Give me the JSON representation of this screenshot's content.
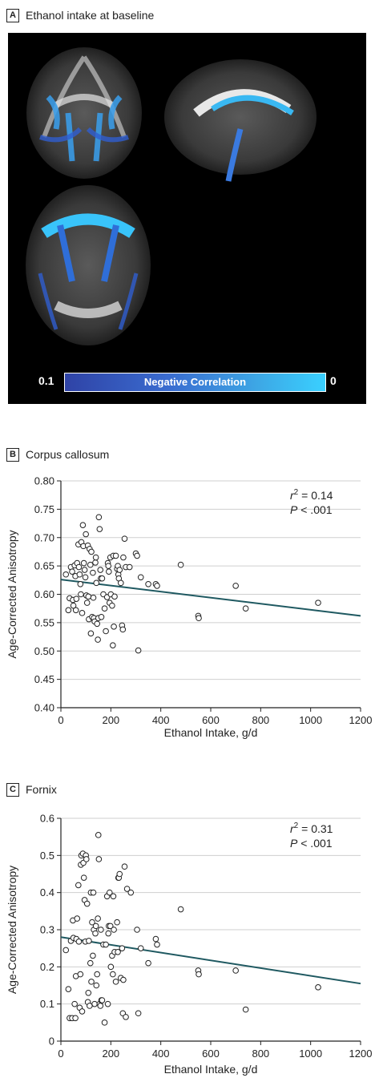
{
  "panelA": {
    "letter": "A",
    "title": "Ethanol intake at baseline",
    "colorbar": {
      "label": "Negative Correlation",
      "min_label": "0.1",
      "max_label": "0",
      "colors": [
        "#2f43a6",
        "#39d0ff"
      ]
    }
  },
  "panelB": {
    "letter": "B",
    "title": "Corpus callosum"
  },
  "panelC": {
    "letter": "C",
    "title": "Fornix"
  },
  "chart_data": [
    {
      "type": "scatter",
      "title": "Corpus callosum",
      "xlabel": "Ethanol Intake, g/d",
      "ylabel": "Age-Corrected Anisotropy",
      "xlim": [
        0,
        1200
      ],
      "ylim": [
        0.4,
        0.8
      ],
      "xticks": [
        0,
        200,
        400,
        600,
        800,
        1000,
        1200
      ],
      "xtick_labels": [
        "0",
        "200",
        "400",
        "600",
        "800",
        "1000",
        "1200"
      ],
      "yticks": [
        0.4,
        0.45,
        0.5,
        0.55,
        0.6,
        0.65,
        0.7,
        0.75,
        0.8
      ],
      "ytick_labels": [
        "0.40",
        "0.45",
        "0.50",
        "0.55",
        "0.60",
        "0.65",
        "0.70",
        "0.75",
        "0.80"
      ],
      "grid": "horizontal",
      "annotation": {
        "r2_prefix": "r",
        "r2_sup": "2",
        "r2_value": " = 0.14",
        "p_prefix": "P",
        "p_value": " < .001"
      },
      "fit_line": {
        "x": [
          0,
          1200
        ],
        "y": [
          0.626,
          0.562
        ],
        "color": "#1f5961"
      },
      "points": [
        [
          20,
          0.635
        ],
        [
          30,
          0.572
        ],
        [
          35,
          0.593
        ],
        [
          40,
          0.648
        ],
        [
          45,
          0.64
        ],
        [
          48,
          0.59
        ],
        [
          50,
          0.58
        ],
        [
          55,
          0.651
        ],
        [
          58,
          0.632
        ],
        [
          60,
          0.572
        ],
        [
          62,
          0.592
        ],
        [
          65,
          0.655
        ],
        [
          70,
          0.688
        ],
        [
          72,
          0.648
        ],
        [
          75,
          0.635
        ],
        [
          78,
          0.618
        ],
        [
          80,
          0.6
        ],
        [
          82,
          0.692
        ],
        [
          85,
          0.567
        ],
        [
          88,
          0.722
        ],
        [
          90,
          0.685
        ],
        [
          92,
          0.655
        ],
        [
          95,
          0.643
        ],
        [
          98,
          0.63
        ],
        [
          100,
          0.706
        ],
        [
          102,
          0.598
        ],
        [
          105,
          0.585
        ],
        [
          108,
          0.686
        ],
        [
          110,
          0.596
        ],
        [
          112,
          0.556
        ],
        [
          115,
          0.68
        ],
        [
          118,
          0.652
        ],
        [
          120,
          0.531
        ],
        [
          122,
          0.675
        ],
        [
          125,
          0.56
        ],
        [
          128,
          0.638
        ],
        [
          130,
          0.594
        ],
        [
          132,
          0.558
        ],
        [
          135,
          0.552
        ],
        [
          138,
          0.656
        ],
        [
          140,
          0.665
        ],
        [
          142,
          0.62
        ],
        [
          145,
          0.548
        ],
        [
          148,
          0.52
        ],
        [
          150,
          0.558
        ],
        [
          152,
          0.736
        ],
        [
          155,
          0.715
        ],
        [
          158,
          0.643
        ],
        [
          160,
          0.628
        ],
        [
          162,
          0.56
        ],
        [
          165,
          0.628
        ],
        [
          170,
          0.6
        ],
        [
          175,
          0.575
        ],
        [
          180,
          0.535
        ],
        [
          185,
          0.595
        ],
        [
          188,
          0.655
        ],
        [
          190,
          0.65
        ],
        [
          192,
          0.64
        ],
        [
          195,
          0.585
        ],
        [
          198,
          0.665
        ],
        [
          200,
          0.6
        ],
        [
          205,
          0.58
        ],
        [
          208,
          0.51
        ],
        [
          210,
          0.668
        ],
        [
          212,
          0.543
        ],
        [
          215,
          0.596
        ],
        [
          220,
          0.668
        ],
        [
          225,
          0.645
        ],
        [
          228,
          0.65
        ],
        [
          230,
          0.635
        ],
        [
          232,
          0.628
        ],
        [
          235,
          0.643
        ],
        [
          240,
          0.62
        ],
        [
          245,
          0.545
        ],
        [
          248,
          0.538
        ],
        [
          250,
          0.665
        ],
        [
          255,
          0.698
        ],
        [
          260,
          0.648
        ],
        [
          275,
          0.648
        ],
        [
          300,
          0.672
        ],
        [
          305,
          0.668
        ],
        [
          310,
          0.501
        ],
        [
          320,
          0.63
        ],
        [
          350,
          0.618
        ],
        [
          380,
          0.618
        ],
        [
          385,
          0.615
        ],
        [
          480,
          0.652
        ],
        [
          550,
          0.562
        ],
        [
          552,
          0.558
        ],
        [
          700,
          0.615
        ],
        [
          740,
          0.575
        ],
        [
          1030,
          0.585
        ]
      ]
    },
    {
      "type": "scatter",
      "title": "Fornix",
      "xlabel": "Ethanol Intake, g/d",
      "ylabel": "Age-Corrected Anisotropy",
      "xlim": [
        0,
        1200
      ],
      "ylim": [
        0,
        0.6
      ],
      "xticks": [
        0,
        200,
        400,
        600,
        800,
        1000,
        1200
      ],
      "xtick_labels": [
        "0",
        "200",
        "400",
        "600",
        "800",
        "1000",
        "1200"
      ],
      "yticks": [
        0,
        0.1,
        0.2,
        0.3,
        0.4,
        0.5,
        0.6
      ],
      "ytick_labels": [
        "0",
        "0.1",
        "0.2",
        "0.3",
        "0.4",
        "0.5",
        "0.6"
      ],
      "grid": "horizontal",
      "annotation": {
        "r2_prefix": "r",
        "r2_sup": "2",
        "r2_value": " = 0.31",
        "p_prefix": "P",
        "p_value": " < .001"
      },
      "fit_line": {
        "x": [
          0,
          1200
        ],
        "y": [
          0.28,
          0.155
        ],
        "color": "#1f5961"
      },
      "points": [
        [
          20,
          0.245
        ],
        [
          30,
          0.14
        ],
        [
          35,
          0.062
        ],
        [
          40,
          0.27
        ],
        [
          45,
          0.062
        ],
        [
          48,
          0.325
        ],
        [
          50,
          0.278
        ],
        [
          55,
          0.1
        ],
        [
          58,
          0.062
        ],
        [
          60,
          0.175
        ],
        [
          62,
          0.275
        ],
        [
          65,
          0.33
        ],
        [
          70,
          0.42
        ],
        [
          72,
          0.268
        ],
        [
          75,
          0.09
        ],
        [
          78,
          0.18
        ],
        [
          80,
          0.475
        ],
        [
          82,
          0.5
        ],
        [
          85,
          0.08
        ],
        [
          88,
          0.505
        ],
        [
          90,
          0.48
        ],
        [
          92,
          0.44
        ],
        [
          95,
          0.38
        ],
        [
          98,
          0.268
        ],
        [
          100,
          0.5
        ],
        [
          102,
          0.49
        ],
        [
          105,
          0.37
        ],
        [
          108,
          0.105
        ],
        [
          110,
          0.13
        ],
        [
          112,
          0.27
        ],
        [
          115,
          0.095
        ],
        [
          118,
          0.21
        ],
        [
          120,
          0.4
        ],
        [
          122,
          0.16
        ],
        [
          125,
          0.32
        ],
        [
          128,
          0.23
        ],
        [
          130,
          0.4
        ],
        [
          132,
          0.3
        ],
        [
          135,
          0.1
        ],
        [
          138,
          0.29
        ],
        [
          140,
          0.31
        ],
        [
          142,
          0.15
        ],
        [
          145,
          0.18
        ],
        [
          148,
          0.33
        ],
        [
          150,
          0.555
        ],
        [
          152,
          0.49
        ],
        [
          155,
          0.1
        ],
        [
          158,
          0.095
        ],
        [
          160,
          0.3
        ],
        [
          162,
          0.11
        ],
        [
          165,
          0.11
        ],
        [
          170,
          0.26
        ],
        [
          175,
          0.05
        ],
        [
          180,
          0.26
        ],
        [
          185,
          0.39
        ],
        [
          188,
          0.1
        ],
        [
          190,
          0.29
        ],
        [
          192,
          0.31
        ],
        [
          195,
          0.4
        ],
        [
          198,
          0.31
        ],
        [
          200,
          0.2
        ],
        [
          205,
          0.23
        ],
        [
          208,
          0.18
        ],
        [
          210,
          0.39
        ],
        [
          212,
          0.3
        ],
        [
          215,
          0.24
        ],
        [
          220,
          0.16
        ],
        [
          225,
          0.32
        ],
        [
          228,
          0.24
        ],
        [
          230,
          0.44
        ],
        [
          232,
          0.44
        ],
        [
          235,
          0.45
        ],
        [
          240,
          0.17
        ],
        [
          245,
          0.25
        ],
        [
          248,
          0.075
        ],
        [
          250,
          0.165
        ],
        [
          255,
          0.47
        ],
        [
          260,
          0.065
        ],
        [
          265,
          0.41
        ],
        [
          280,
          0.4
        ],
        [
          305,
          0.3
        ],
        [
          310,
          0.075
        ],
        [
          320,
          0.25
        ],
        [
          350,
          0.21
        ],
        [
          380,
          0.275
        ],
        [
          385,
          0.26
        ],
        [
          480,
          0.355
        ],
        [
          550,
          0.19
        ],
        [
          552,
          0.18
        ],
        [
          700,
          0.19
        ],
        [
          740,
          0.085
        ],
        [
          1030,
          0.145
        ]
      ]
    }
  ]
}
